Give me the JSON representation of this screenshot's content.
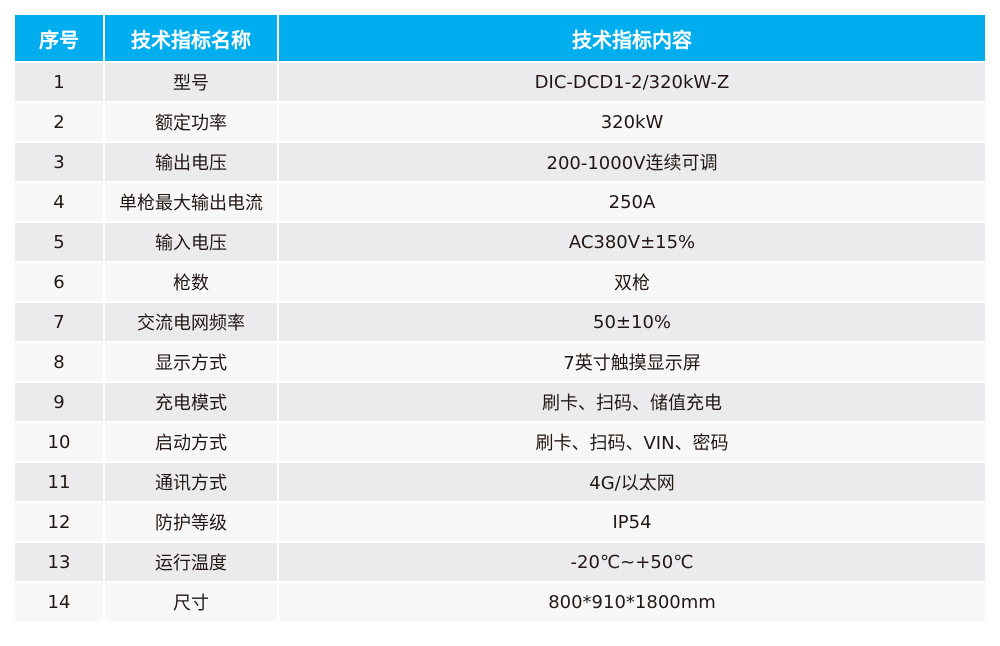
{
  "header": {
    "col_index": "序号",
    "col_name": "技术指标名称",
    "col_value": "技术指标内容"
  },
  "header_color": "#00AEEF",
  "rows": [
    {
      "index": "1",
      "name": "型号",
      "value": "DIC-DCD1-2/320kW-Z"
    },
    {
      "index": "2",
      "name": "额定功率",
      "value": "320kW"
    },
    {
      "index": "3",
      "name": "输出电压",
      "value": "200-1000V连续可调"
    },
    {
      "index": "4",
      "name": "单枪最大输出电流",
      "value": "250A"
    },
    {
      "index": "5",
      "name": "输入电压",
      "value": "AC380V±15%"
    },
    {
      "index": "6",
      "name": "枪数",
      "value": "双枪"
    },
    {
      "index": "7",
      "name": "交流电网频率",
      "value": "50±10%"
    },
    {
      "index": "8",
      "name": "显示方式",
      "value": "7英寸触摸显示屏"
    },
    {
      "index": "9",
      "name": "充电模式",
      "value": "刷卡、扫码、储值充电"
    },
    {
      "index": "10",
      "name": "启动方式",
      "value": "刷卡、扫码、VIN、密码"
    },
    {
      "index": "11",
      "name": "通讯方式",
      "value": "4G/以太网"
    },
    {
      "index": "12",
      "name": "防护等级",
      "value": "IP54"
    },
    {
      "index": "13",
      "name": "运行温度",
      "value": "-20℃~+50℃"
    },
    {
      "index": "14",
      "name": "尺寸",
      "value": "800*910*1800mm"
    }
  ]
}
